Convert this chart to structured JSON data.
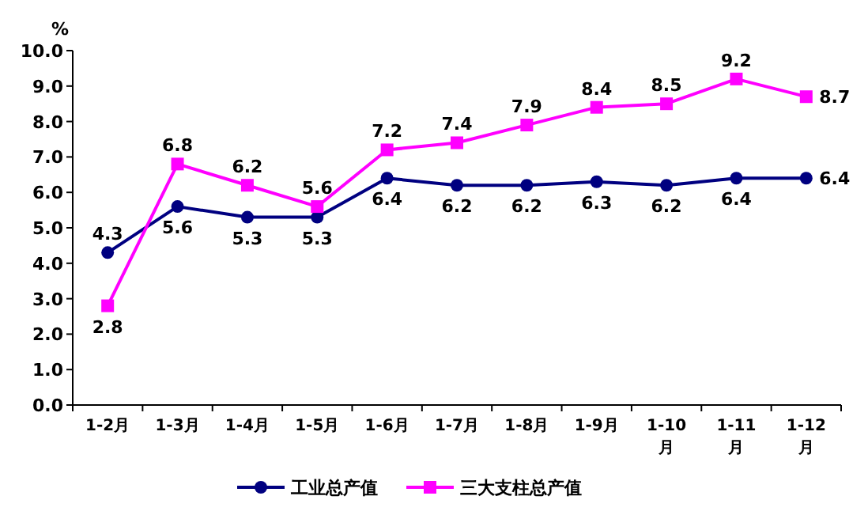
{
  "chart_data": {
    "type": "line",
    "ylabel": "%",
    "categories": [
      "1-2月",
      "1-3月",
      "1-4月",
      "1-5月",
      "1-6月",
      "1-7月",
      "1-8月",
      "1-9月",
      "1-10月",
      "1-11月",
      "1-12月"
    ],
    "series": [
      {
        "name": "工业总产值",
        "color": "#000080",
        "marker": "circle",
        "values": [
          4.3,
          5.6,
          5.3,
          5.3,
          6.4,
          6.2,
          6.2,
          6.3,
          6.2,
          6.4,
          6.4
        ]
      },
      {
        "name": "三大支柱总产值",
        "color": "#ff00ff",
        "marker": "square",
        "values": [
          2.8,
          6.8,
          6.2,
          5.6,
          7.2,
          7.4,
          7.9,
          8.4,
          8.5,
          9.2,
          8.7
        ]
      }
    ],
    "ylim": [
      0,
      10
    ],
    "yticks": [
      {
        "value": 0,
        "label": "0.0"
      },
      {
        "value": 1,
        "label": "1.0"
      },
      {
        "value": 2,
        "label": "2.0"
      },
      {
        "value": 3,
        "label": "3.0"
      },
      {
        "value": 4,
        "label": "4.0"
      },
      {
        "value": 5,
        "label": "5.0"
      },
      {
        "value": 6,
        "label": "6.0"
      },
      {
        "value": 7,
        "label": "7.0"
      },
      {
        "value": 8,
        "label": "8.0"
      },
      {
        "value": 9,
        "label": "9.0"
      },
      {
        "value": 10,
        "label": "10.0"
      }
    ],
    "data_labels": true,
    "legend": "bottom",
    "grid": false
  }
}
